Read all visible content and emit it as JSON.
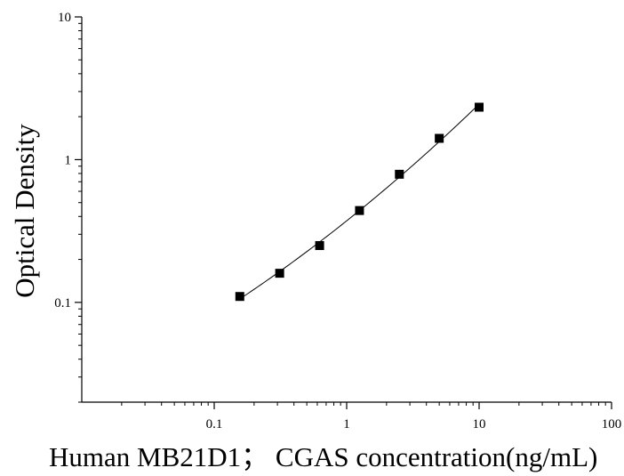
{
  "chart_data": {
    "type": "scatter",
    "xlabel": "Human MB21D1； CGAS concentration(ng/mL)",
    "ylabel": "Optical Density",
    "x_scale": "log",
    "y_scale": "log",
    "xlim": [
      0.01,
      100
    ],
    "ylim": [
      0.02,
      10
    ],
    "x_ticks": [
      {
        "value": 0.1,
        "label": "0.1"
      },
      {
        "value": 1,
        "label": "1"
      },
      {
        "value": 10,
        "label": "10"
      },
      {
        "value": 100,
        "label": "100"
      }
    ],
    "y_ticks": [
      {
        "value": 0.1,
        "label": "0.1"
      },
      {
        "value": 1,
        "label": "1"
      },
      {
        "value": 10,
        "label": "10"
      }
    ],
    "grid": false,
    "legend": "none",
    "marker": "square",
    "color": "#000000",
    "fit_curve": true,
    "series": [
      {
        "x": [
          0.156,
          0.312,
          0.625,
          1.25,
          2.5,
          5,
          10
        ],
        "y": [
          0.11,
          0.16,
          0.25,
          0.44,
          0.79,
          1.41,
          2.33
        ]
      }
    ]
  }
}
